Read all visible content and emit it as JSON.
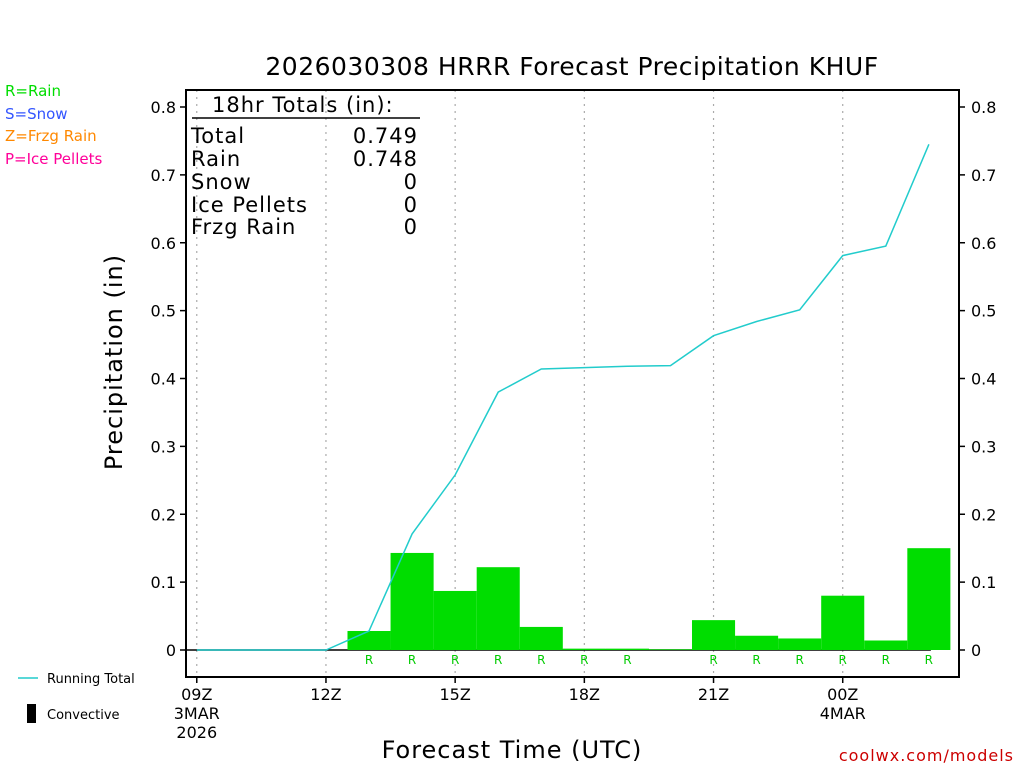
{
  "chart_data": {
    "type": "bar",
    "title": "2026030308 HRRR Forecast Precipitation KHUF",
    "xlabel": "Forecast Time (UTC)",
    "ylabel": "Precipitation (in)",
    "ylim": [
      0,
      0.8
    ],
    "yticks": [
      "0",
      "0.1",
      "0.2",
      "0.3",
      "0.4",
      "0.5",
      "0.6",
      "0.7",
      "0.8"
    ],
    "x_hour_range": [
      8.75,
      26.7
    ],
    "xticks": [
      {
        "hour": 9,
        "label": "09Z",
        "sub1": "3MAR",
        "sub2": "2026"
      },
      {
        "hour": 12,
        "label": "12Z",
        "sub1": "",
        "sub2": ""
      },
      {
        "hour": 15,
        "label": "15Z",
        "sub1": "",
        "sub2": ""
      },
      {
        "hour": 18,
        "label": "18Z",
        "sub1": "",
        "sub2": ""
      },
      {
        "hour": 21,
        "label": "21Z",
        "sub1": "",
        "sub2": ""
      },
      {
        "hour": 24,
        "label": "00Z",
        "sub1": "4MAR",
        "sub2": ""
      }
    ],
    "bars": [
      {
        "hour": 13,
        "value": 0.028,
        "ptype": "R"
      },
      {
        "hour": 14,
        "value": 0.143,
        "ptype": "R"
      },
      {
        "hour": 15,
        "value": 0.087,
        "ptype": "R"
      },
      {
        "hour": 16,
        "value": 0.122,
        "ptype": "R"
      },
      {
        "hour": 17,
        "value": 0.034,
        "ptype": "R"
      },
      {
        "hour": 18,
        "value": 0.002,
        "ptype": "R"
      },
      {
        "hour": 19,
        "value": 0.002,
        "ptype": "R"
      },
      {
        "hour": 20,
        "value": 0.001,
        "ptype": ""
      },
      {
        "hour": 21,
        "value": 0.044,
        "ptype": "R"
      },
      {
        "hour": 22,
        "value": 0.021,
        "ptype": "R"
      },
      {
        "hour": 23,
        "value": 0.017,
        "ptype": "R"
      },
      {
        "hour": 24,
        "value": 0.08,
        "ptype": "R"
      },
      {
        "hour": 25,
        "value": 0.014,
        "ptype": "R"
      },
      {
        "hour": 26,
        "value": 0.15,
        "ptype": "R"
      }
    ],
    "running_total": {
      "name": "Running Total",
      "hours": [
        9,
        12,
        13,
        14,
        15,
        16,
        17,
        18,
        19,
        20,
        21,
        22,
        23,
        24,
        25,
        26
      ],
      "values": [
        0,
        0,
        0.028,
        0.171,
        0.258,
        0.38,
        0.414,
        0.416,
        0.418,
        0.419,
        0.463,
        0.484,
        0.501,
        0.581,
        0.595,
        0.745
      ]
    },
    "legend": {
      "running_total": "Running Total",
      "convective": "Convective"
    },
    "precip_types": [
      {
        "label": "R=Rain",
        "color": "#00dd00"
      },
      {
        "label": "S=Snow",
        "color": "#3355ff"
      },
      {
        "label": "Z=Frzg Rain",
        "color": "#ff8800"
      },
      {
        "label": "P=Ice Pellets",
        "color": "#ff0099"
      }
    ],
    "totals": {
      "header": "18hr Totals (in):",
      "rows": [
        {
          "label": "Total",
          "value": "0.749"
        },
        {
          "label": "Rain",
          "value": "0.748"
        },
        {
          "label": "Snow",
          "value": "0"
        },
        {
          "label": "Ice Pellets",
          "value": "0"
        },
        {
          "label": "Frzg Rain",
          "value": "0"
        }
      ]
    },
    "credit": "coolwx.com/models",
    "colors": {
      "bar": "#00dd00",
      "line": "#22cccc",
      "grid": "#aaaaaa",
      "credit": "#cc0000"
    }
  }
}
